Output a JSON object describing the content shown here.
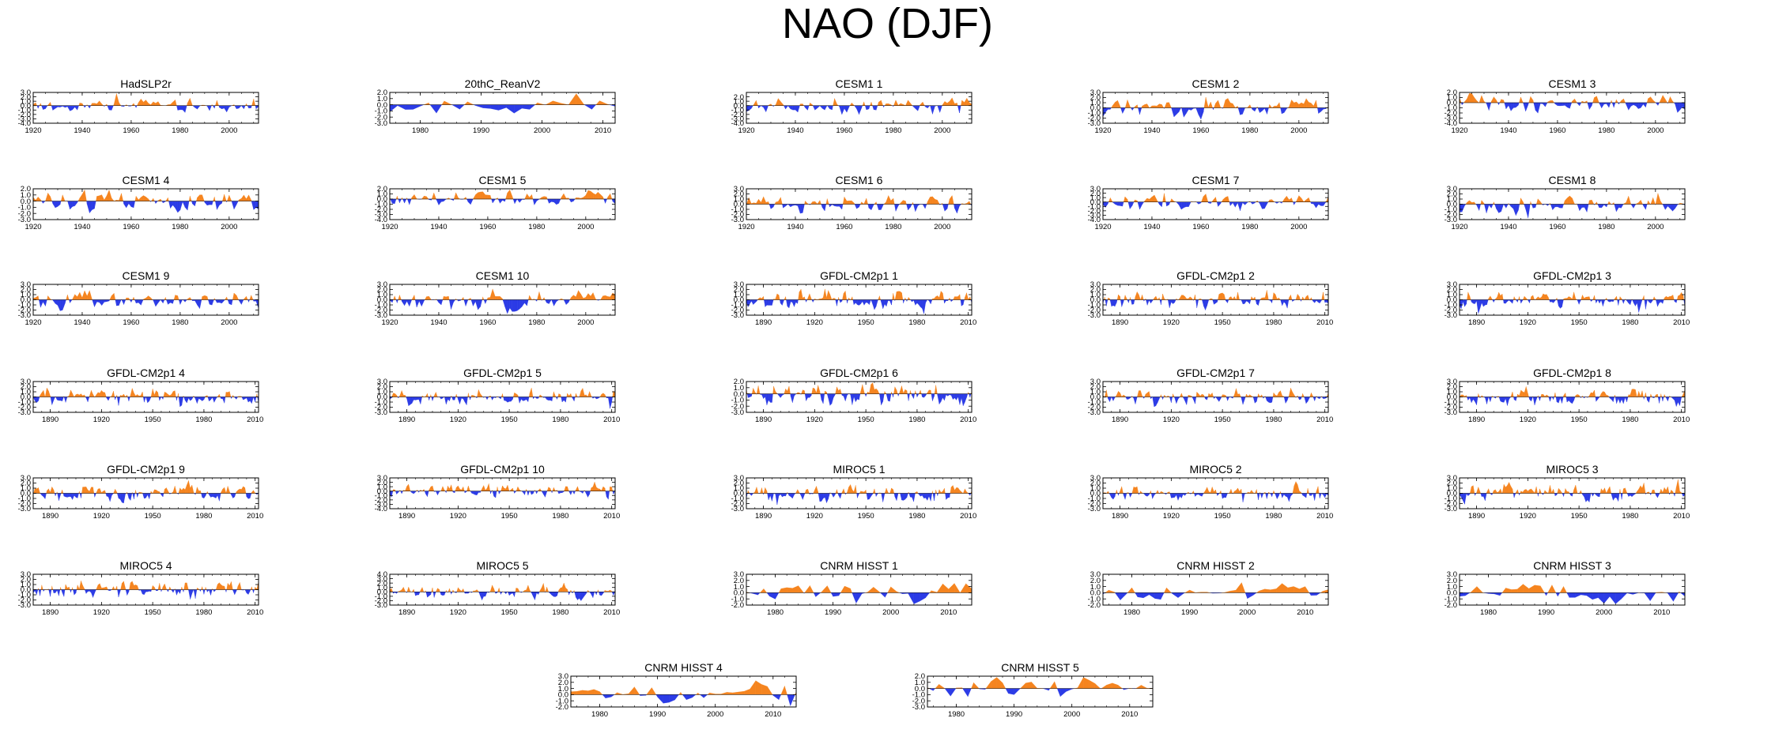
{
  "figure_title": "NAO (DJF)",
  "colors": {
    "positive": "#f5841f",
    "negative": "#2b3be6",
    "axis": "#000000"
  },
  "chart_data": [
    {
      "type": "area",
      "title": "HadSLP2r",
      "xlim": [
        1920,
        2012
      ],
      "ylim": [
        -4,
        3
      ],
      "yticks": [
        "3.0",
        "2.0",
        "1.0",
        "0.0",
        "-1.0",
        "-2.0",
        "-3.0",
        "-4.0"
      ],
      "xticks": [
        1920,
        1940,
        1960,
        1980,
        2000
      ],
      "n": 93,
      "amp": 1.1,
      "seed": 3
    },
    {
      "type": "area",
      "title": "20thC_ReanV2",
      "xlim": [
        1975,
        2012
      ],
      "ylim": [
        -3,
        2
      ],
      "yticks": [
        "2.0",
        "1.0",
        "0.0",
        "-1.0",
        "-2.0",
        "-3.0"
      ],
      "xticks": [
        1980,
        1990,
        2000,
        2010
      ],
      "n": 30,
      "amp": 1.3,
      "seed": 11
    },
    {
      "type": "area",
      "title": "CESM1 1",
      "xlim": [
        1920,
        2012
      ],
      "ylim": [
        -4,
        3
      ],
      "yticks": [
        "2.0",
        "1.0",
        "0.0",
        "-1.0",
        "-2.0",
        "-3.0",
        "-4.0"
      ],
      "xticks": [
        1920,
        1940,
        1960,
        1980,
        2000
      ],
      "n": 93,
      "amp": 1.1,
      "seed": 21
    },
    {
      "type": "area",
      "title": "CESM1 2",
      "xlim": [
        1920,
        2012
      ],
      "ylim": [
        -3,
        3
      ],
      "yticks": [
        "3.0",
        "2.0",
        "1.0",
        "0.0",
        "-1.0",
        "-2.0",
        "-3.0"
      ],
      "xticks": [
        1920,
        1940,
        1960,
        1980,
        2000
      ],
      "n": 93,
      "amp": 1.1,
      "seed": 31
    },
    {
      "type": "area",
      "title": "CESM1 3",
      "xlim": [
        1920,
        2012
      ],
      "ylim": [
        -4,
        2
      ],
      "yticks": [
        "2.0",
        "1.0",
        "0.0",
        "-1.0",
        "-2.0",
        "-3.0",
        "-4.0"
      ],
      "xticks": [
        1920,
        1940,
        1960,
        1980,
        2000
      ],
      "n": 93,
      "amp": 1.1,
      "seed": 41
    },
    {
      "type": "area",
      "title": "CESM1 4",
      "xlim": [
        1920,
        2012
      ],
      "ylim": [
        -3,
        2
      ],
      "yticks": [
        "2.0",
        "1.0",
        "0.0",
        "-1.0",
        "-2.0",
        "-3.0"
      ],
      "xticks": [
        1920,
        1940,
        1960,
        1980,
        2000
      ],
      "n": 93,
      "amp": 1.1,
      "seed": 51
    },
    {
      "type": "area",
      "title": "CESM1 5",
      "xlim": [
        1920,
        2012
      ],
      "ylim": [
        -4,
        2
      ],
      "yticks": [
        "2.0",
        "1.0",
        "0.0",
        "-1.0",
        "-2.0",
        "-3.0",
        "-4.0"
      ],
      "xticks": [
        1920,
        1940,
        1960,
        1980,
        2000
      ],
      "n": 93,
      "amp": 1.1,
      "seed": 61
    },
    {
      "type": "area",
      "title": "CESM1 6",
      "xlim": [
        1920,
        2012
      ],
      "ylim": [
        -3,
        3
      ],
      "yticks": [
        "3.0",
        "2.0",
        "1.0",
        "0.0",
        "-1.0",
        "-2.0",
        "-3.0"
      ],
      "xticks": [
        1920,
        1940,
        1960,
        1980,
        2000
      ],
      "n": 93,
      "amp": 1.1,
      "seed": 71
    },
    {
      "type": "area",
      "title": "CESM1 7",
      "xlim": [
        1920,
        2012
      ],
      "ylim": [
        -4,
        3
      ],
      "yticks": [
        "3.0",
        "2.0",
        "1.0",
        "0.0",
        "-1.0",
        "-2.0",
        "-3.0",
        "-4.0"
      ],
      "xticks": [
        1920,
        1940,
        1960,
        1980,
        2000
      ],
      "n": 93,
      "amp": 1.1,
      "seed": 81
    },
    {
      "type": "area",
      "title": "CESM1 8",
      "xlim": [
        1920,
        2012
      ],
      "ylim": [
        -3,
        3
      ],
      "yticks": [
        "3.0",
        "2.0",
        "1.0",
        "0.0",
        "-1.0",
        "-2.0",
        "-3.0"
      ],
      "xticks": [
        1920,
        1940,
        1960,
        1980,
        2000
      ],
      "n": 93,
      "amp": 1.1,
      "seed": 91
    },
    {
      "type": "area",
      "title": "CESM1 9",
      "xlim": [
        1920,
        2012
      ],
      "ylim": [
        -3,
        3
      ],
      "yticks": [
        "3.0",
        "2.0",
        "1.0",
        "0.0",
        "-1.0",
        "-2.0",
        "-3.0"
      ],
      "xticks": [
        1920,
        1940,
        1960,
        1980,
        2000
      ],
      "n": 93,
      "amp": 1.1,
      "seed": 101
    },
    {
      "type": "area",
      "title": "CESM1 10",
      "xlim": [
        1920,
        2012
      ],
      "ylim": [
        -3,
        3
      ],
      "yticks": [
        "3.0",
        "2.0",
        "1.0",
        "0.0",
        "-1.0",
        "-2.0",
        "-3.0"
      ],
      "xticks": [
        1920,
        1940,
        1960,
        1980,
        2000
      ],
      "n": 93,
      "amp": 1.1,
      "seed": 111
    },
    {
      "type": "area",
      "title": "GFDL-CM2p1 1",
      "xlim": [
        1880,
        2012
      ],
      "ylim": [
        -3,
        3
      ],
      "yticks": [
        "3.0",
        "2.0",
        "1.0",
        "0.0",
        "-1.0",
        "-2.0",
        "-3.0"
      ],
      "xticks": [
        1890,
        1920,
        1950,
        1980,
        2010
      ],
      "n": 133,
      "amp": 1.0,
      "seed": 121
    },
    {
      "type": "area",
      "title": "GFDL-CM2p1 2",
      "xlim": [
        1880,
        2012
      ],
      "ylim": [
        -3,
        3
      ],
      "yticks": [
        "3.0",
        "2.0",
        "1.0",
        "0.0",
        "-1.0",
        "-2.0",
        "-3.0"
      ],
      "xticks": [
        1890,
        1920,
        1950,
        1980,
        2010
      ],
      "n": 133,
      "amp": 1.0,
      "seed": 131
    },
    {
      "type": "area",
      "title": "GFDL-CM2p1 3",
      "xlim": [
        1880,
        2012
      ],
      "ylim": [
        -3,
        3
      ],
      "yticks": [
        "3.0",
        "2.0",
        "1.0",
        "0.0",
        "-1.0",
        "-2.0",
        "-3.0"
      ],
      "xticks": [
        1890,
        1920,
        1950,
        1980,
        2010
      ],
      "n": 133,
      "amp": 1.0,
      "seed": 141
    },
    {
      "type": "area",
      "title": "GFDL-CM2p1 4",
      "xlim": [
        1880,
        2012
      ],
      "ylim": [
        -3,
        3
      ],
      "yticks": [
        "3.0",
        "2.0",
        "1.0",
        "0.0",
        "-1.0",
        "-2.0",
        "-3.0"
      ],
      "xticks": [
        1890,
        1920,
        1950,
        1980,
        2010
      ],
      "n": 133,
      "amp": 1.0,
      "seed": 151
    },
    {
      "type": "area",
      "title": "GFDL-CM2p1 5",
      "xlim": [
        1880,
        2012
      ],
      "ylim": [
        -3,
        3
      ],
      "yticks": [
        "3.0",
        "2.0",
        "1.0",
        "0.0",
        "-1.0",
        "-2.0",
        "-3.0"
      ],
      "xticks": [
        1890,
        1920,
        1950,
        1980,
        2010
      ],
      "n": 133,
      "amp": 1.0,
      "seed": 161
    },
    {
      "type": "area",
      "title": "GFDL-CM2p1 6",
      "xlim": [
        1880,
        2012
      ],
      "ylim": [
        -3,
        2
      ],
      "yticks": [
        "2.0",
        "1.0",
        "0.0",
        "-1.0",
        "-2.0",
        "-3.0"
      ],
      "xticks": [
        1890,
        1920,
        1950,
        1980,
        2010
      ],
      "n": 133,
      "amp": 1.0,
      "seed": 171
    },
    {
      "type": "area",
      "title": "GFDL-CM2p1 7",
      "xlim": [
        1880,
        2012
      ],
      "ylim": [
        -3,
        3
      ],
      "yticks": [
        "3.0",
        "2.0",
        "1.0",
        "0.0",
        "-1.0",
        "-2.0",
        "-3.0"
      ],
      "xticks": [
        1890,
        1920,
        1950,
        1980,
        2010
      ],
      "n": 133,
      "amp": 1.0,
      "seed": 181
    },
    {
      "type": "area",
      "title": "GFDL-CM2p1 8",
      "xlim": [
        1880,
        2012
      ],
      "ylim": [
        -3,
        3
      ],
      "yticks": [
        "3.0",
        "2.0",
        "1.0",
        "0.0",
        "-1.0",
        "-2.0",
        "-3.0"
      ],
      "xticks": [
        1890,
        1920,
        1950,
        1980,
        2010
      ],
      "n": 133,
      "amp": 1.0,
      "seed": 191
    },
    {
      "type": "area",
      "title": "GFDL-CM2p1 9",
      "xlim": [
        1880,
        2012
      ],
      "ylim": [
        -3,
        3
      ],
      "yticks": [
        "3.0",
        "2.0",
        "1.0",
        "0.0",
        "-1.0",
        "-2.0",
        "-3.0"
      ],
      "xticks": [
        1890,
        1920,
        1950,
        1980,
        2010
      ],
      "n": 133,
      "amp": 1.0,
      "seed": 201
    },
    {
      "type": "area",
      "title": "GFDL-CM2p1 10",
      "xlim": [
        1880,
        2012
      ],
      "ylim": [
        -4,
        3
      ],
      "yticks": [
        "3.0",
        "2.0",
        "1.0",
        "0.0",
        "-1.0",
        "-2.0",
        "-3.0",
        "-4.0"
      ],
      "xticks": [
        1890,
        1920,
        1950,
        1980,
        2010
      ],
      "n": 133,
      "amp": 1.0,
      "seed": 211
    },
    {
      "type": "area",
      "title": "MIROC5 1",
      "xlim": [
        1880,
        2012
      ],
      "ylim": [
        -3,
        3
      ],
      "yticks": [
        "3.0",
        "2.0",
        "1.0",
        "0.0",
        "-1.0",
        "-2.0",
        "-3.0"
      ],
      "xticks": [
        1890,
        1920,
        1950,
        1980,
        2010
      ],
      "n": 133,
      "amp": 1.0,
      "seed": 221
    },
    {
      "type": "area",
      "title": "MIROC5 2",
      "xlim": [
        1880,
        2012
      ],
      "ylim": [
        -3,
        3
      ],
      "yticks": [
        "3.0",
        "2.0",
        "1.0",
        "0.0",
        "-1.0",
        "-2.0",
        "-3.0"
      ],
      "xticks": [
        1890,
        1920,
        1950,
        1980,
        2010
      ],
      "n": 133,
      "amp": 1.0,
      "seed": 231
    },
    {
      "type": "area",
      "title": "MIROC5 3",
      "xlim": [
        1880,
        2012
      ],
      "ylim": [
        -3,
        3
      ],
      "yticks": [
        "3.0",
        "2.0",
        "1.0",
        "0.0",
        "-1.0",
        "-2.0",
        "-3.0"
      ],
      "xticks": [
        1890,
        1920,
        1950,
        1980,
        2010
      ],
      "n": 133,
      "amp": 1.0,
      "seed": 241
    },
    {
      "type": "area",
      "title": "MIROC5 4",
      "xlim": [
        1880,
        2012
      ],
      "ylim": [
        -3,
        3
      ],
      "yticks": [
        "3.0",
        "2.0",
        "1.0",
        "0.0",
        "-1.0",
        "-2.0",
        "-3.0"
      ],
      "xticks": [
        1890,
        1920,
        1950,
        1980,
        2010
      ],
      "n": 133,
      "amp": 1.0,
      "seed": 251
    },
    {
      "type": "area",
      "title": "MIROC5 5",
      "xlim": [
        1880,
        2012
      ],
      "ylim": [
        -3,
        4
      ],
      "yticks": [
        "4.0",
        "3.0",
        "2.0",
        "1.0",
        "0.0",
        "-1.0",
        "-2.0",
        "-3.0"
      ],
      "xticks": [
        1890,
        1920,
        1950,
        1980,
        2010
      ],
      "n": 133,
      "amp": 1.0,
      "seed": 261
    },
    {
      "type": "area",
      "title": "CNRM HISST 1",
      "xlim": [
        1975,
        2014
      ],
      "ylim": [
        -2,
        3
      ],
      "yticks": [
        "3.0",
        "2.0",
        "1.0",
        "0.0",
        "-1.0",
        "-2.0"
      ],
      "xticks": [
        1980,
        1990,
        2000,
        2010
      ],
      "n": 40,
      "amp": 1.0,
      "seed": 271
    },
    {
      "type": "area",
      "title": "CNRM HISST 2",
      "xlim": [
        1975,
        2014
      ],
      "ylim": [
        -2,
        3
      ],
      "yticks": [
        "3.0",
        "2.0",
        "1.0",
        "0.0",
        "-1.0",
        "-2.0"
      ],
      "xticks": [
        1980,
        1990,
        2000,
        2010
      ],
      "n": 40,
      "amp": 1.0,
      "seed": 281
    },
    {
      "type": "area",
      "title": "CNRM HISST 3",
      "xlim": [
        1975,
        2014
      ],
      "ylim": [
        -2,
        3
      ],
      "yticks": [
        "3.0",
        "2.0",
        "1.0",
        "0.0",
        "-1.0",
        "-2.0"
      ],
      "xticks": [
        1980,
        1990,
        2000,
        2010
      ],
      "n": 40,
      "amp": 1.0,
      "seed": 291
    },
    {
      "type": "area",
      "title": "CNRM HISST 4",
      "xlim": [
        1975,
        2014
      ],
      "ylim": [
        -2,
        3
      ],
      "yticks": [
        "3.0",
        "2.0",
        "1.0",
        "0.0",
        "-1.0",
        "-2.0"
      ],
      "xticks": [
        1980,
        1990,
        2000,
        2010
      ],
      "n": 40,
      "amp": 1.0,
      "seed": 301
    },
    {
      "type": "area",
      "title": "CNRM HISST 5",
      "xlim": [
        1975,
        2014
      ],
      "ylim": [
        -3,
        2
      ],
      "yticks": [
        "2.0",
        "1.0",
        "0.0",
        "-1.0",
        "-2.0",
        "-3.0"
      ],
      "xticks": [
        1980,
        1990,
        2000,
        2010
      ],
      "n": 40,
      "amp": 1.0,
      "seed": 311
    }
  ]
}
